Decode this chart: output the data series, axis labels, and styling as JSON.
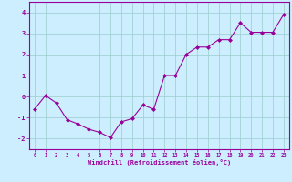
{
  "x": [
    0,
    1,
    2,
    3,
    4,
    5,
    6,
    7,
    8,
    9,
    10,
    11,
    12,
    13,
    14,
    15,
    16,
    17,
    18,
    19,
    20,
    21,
    22,
    23
  ],
  "y": [
    -0.6,
    0.05,
    -0.3,
    -1.1,
    -1.3,
    -1.55,
    -1.7,
    -1.95,
    -1.2,
    -1.05,
    -0.4,
    -0.6,
    1.0,
    1.0,
    2.0,
    2.35,
    2.35,
    2.7,
    2.7,
    3.5,
    3.05,
    3.05,
    3.05,
    3.9
  ],
  "line_color": "#990099",
  "marker": "D",
  "marker_size": 2.0,
  "background_color": "#cceeff",
  "grid_color": "#99cccc",
  "xlabel": "Windchill (Refroidissement éolien,°C)",
  "xlabel_color": "#990099",
  "ylabel_ticks": [
    -2,
    -1,
    0,
    1,
    2,
    3,
    4
  ],
  "xtick_labels": [
    "0",
    "1",
    "2",
    "3",
    "4",
    "5",
    "6",
    "7",
    "8",
    "9",
    "10",
    "11",
    "12",
    "13",
    "14",
    "15",
    "16",
    "17",
    "18",
    "19",
    "20",
    "21",
    "22",
    "23"
  ],
  "ylim": [
    -2.5,
    4.5
  ],
  "xlim": [
    -0.5,
    23.5
  ],
  "tick_color": "#990099",
  "axis_color": "#990099"
}
